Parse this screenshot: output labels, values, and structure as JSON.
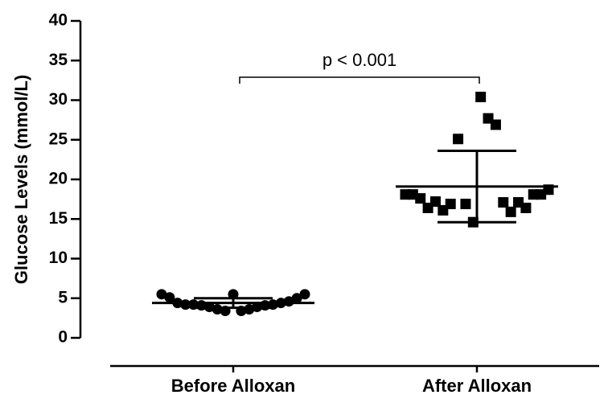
{
  "chart_data": {
    "type": "dot",
    "ylabel": "Glucose Levels (mmol/L)",
    "annotation": "p < 0.001",
    "categories": [
      "Before Alloxan",
      "After Alloxan"
    ],
    "markers": [
      "circle",
      "square"
    ],
    "color": "#000000",
    "groups": [
      {
        "values": [
          5.5,
          5.1,
          4.4,
          4.2,
          4.2,
          4.1,
          3.9,
          3.6,
          3.4,
          5.5,
          3.4,
          3.6,
          3.9,
          4.1,
          4.2,
          4.4,
          4.6,
          5.0,
          5.5
        ],
        "mean": 4.4,
        "sd": 0.6
      },
      {
        "values": [
          18.1,
          18.1,
          17.6,
          16.4,
          17.2,
          16.1,
          16.9,
          25.1,
          16.9,
          14.6,
          30.4,
          27.7,
          26.9,
          17.1,
          15.9,
          17.1,
          16.4,
          18.1,
          18.1,
          18.7
        ],
        "mean": 19.1,
        "sd": 4.5
      }
    ],
    "ylim": [
      0,
      40
    ],
    "yticks": [
      0,
      5,
      10,
      15,
      20,
      25,
      30,
      35,
      40
    ]
  }
}
